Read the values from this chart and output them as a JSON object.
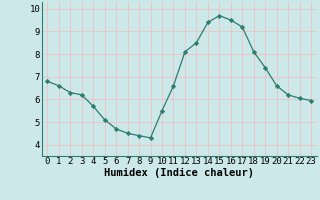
{
  "x": [
    0,
    1,
    2,
    3,
    4,
    5,
    6,
    7,
    8,
    9,
    10,
    11,
    12,
    13,
    14,
    15,
    16,
    17,
    18,
    19,
    20,
    21,
    22,
    23
  ],
  "y": [
    6.8,
    6.6,
    6.3,
    6.2,
    5.7,
    5.1,
    4.7,
    4.5,
    4.4,
    4.3,
    5.5,
    6.6,
    8.1,
    8.5,
    9.4,
    9.7,
    9.5,
    9.2,
    8.1,
    7.4,
    6.6,
    6.2,
    6.05,
    5.95
  ],
  "xlabel": "Humidex (Indice chaleur)",
  "ylim": [
    3.5,
    10.3
  ],
  "xlim": [
    -0.5,
    23.5
  ],
  "yticks": [
    4,
    5,
    6,
    7,
    8,
    9,
    10
  ],
  "xticks": [
    0,
    1,
    2,
    3,
    4,
    5,
    6,
    7,
    8,
    9,
    10,
    11,
    12,
    13,
    14,
    15,
    16,
    17,
    18,
    19,
    20,
    21,
    22,
    23
  ],
  "line_color": "#2d7d6e",
  "marker_color": "#2d7d6e",
  "bg_color": "#cce8e8",
  "grid_color": "#e8c8c8",
  "xlabel_fontsize": 7.5,
  "tick_fontsize": 6.5
}
